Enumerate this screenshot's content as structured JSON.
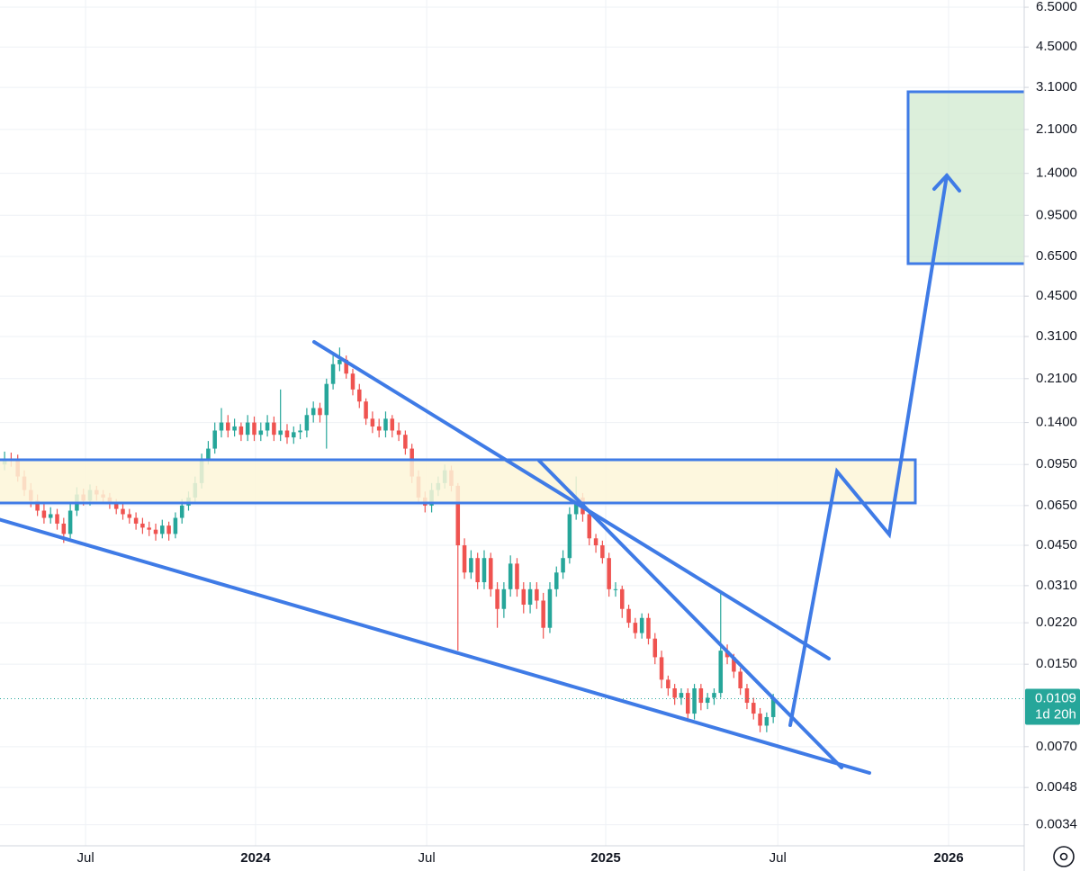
{
  "chart_data": {
    "type": "candlestick",
    "log_scale": true,
    "grid": true,
    "up_color": "#26a69a",
    "down_color": "#ef5350",
    "xlim": [
      -0.7,
      155.2
    ],
    "xticks": [
      {
        "value": 12.33,
        "label": "Jul"
      },
      {
        "value": 38.2,
        "label": "2024"
      },
      {
        "value": 64.25,
        "label": "Jul"
      },
      {
        "value": 91.5,
        "label": "2025"
      },
      {
        "value": 117.7,
        "label": "Jul"
      },
      {
        "value": 143.7,
        "label": "2026"
      }
    ],
    "ylim": [
      0.0028,
      6.95
    ],
    "yticks": [
      {
        "value": 6.5,
        "label": "6.5000"
      },
      {
        "value": 4.5,
        "label": "4.5000"
      },
      {
        "value": 3.1,
        "label": "3.1000"
      },
      {
        "value": 2.1,
        "label": "2.1000"
      },
      {
        "value": 1.4,
        "label": "1.4000"
      },
      {
        "value": 0.95,
        "label": "0.9500"
      },
      {
        "value": 0.65,
        "label": "0.6500"
      },
      {
        "value": 0.45,
        "label": "0.4500"
      },
      {
        "value": 0.31,
        "label": "0.3100"
      },
      {
        "value": 0.21,
        "label": "0.2100"
      },
      {
        "value": 0.14,
        "label": "0.1400"
      },
      {
        "value": 0.095,
        "label": "0.0950"
      },
      {
        "value": 0.065,
        "label": "0.0650"
      },
      {
        "value": 0.045,
        "label": "0.0450"
      },
      {
        "value": 0.031,
        "label": "0.0310"
      },
      {
        "value": 0.022,
        "label": "0.0220"
      },
      {
        "value": 0.015,
        "label": "0.0150"
      },
      {
        "value": 0.007,
        "label": "0.0070"
      },
      {
        "value": 0.0048,
        "label": "0.0048"
      },
      {
        "value": 0.0034,
        "label": "0.0034"
      }
    ],
    "last_price": {
      "value": 0.0109,
      "label": "0.0109"
    },
    "countdown": "1d 20h",
    "open": [
      0.095,
      0.1,
      0.098,
      0.085,
      0.075,
      0.068,
      0.062,
      0.058,
      0.06,
      0.055,
      0.05,
      0.062,
      0.072,
      0.068,
      0.075,
      0.072,
      0.07,
      0.066,
      0.063,
      0.06,
      0.058,
      0.055,
      0.053,
      0.052,
      0.05,
      0.054,
      0.05,
      0.058,
      0.065,
      0.07,
      0.08,
      0.1,
      0.11,
      0.13,
      0.14,
      0.13,
      0.135,
      0.125,
      0.14,
      0.125,
      0.13,
      0.14,
      0.125,
      0.13,
      0.122,
      0.128,
      0.13,
      0.15,
      0.16,
      0.15,
      0.2,
      0.24,
      0.25,
      0.22,
      0.19,
      0.17,
      0.145,
      0.135,
      0.13,
      0.145,
      0.13,
      0.125,
      0.11,
      0.085,
      0.07,
      0.065,
      0.075,
      0.08,
      0.09,
      0.078,
      0.045,
      0.035,
      0.04,
      0.032,
      0.04,
      0.03,
      0.025,
      0.03,
      0.038,
      0.03,
      0.026,
      0.03,
      0.027,
      0.021,
      0.03,
      0.035,
      0.04,
      0.06,
      0.07,
      0.06,
      0.048,
      0.045,
      0.04,
      0.03,
      0.03,
      0.025,
      0.022,
      0.02,
      0.023,
      0.019,
      0.016,
      0.013,
      0.012,
      0.011,
      0.0115,
      0.0095,
      0.012,
      0.0105,
      0.011,
      0.0115,
      0.017,
      0.016,
      0.014,
      0.012,
      0.0105,
      0.0095,
      0.0085,
      0.0092
    ],
    "high": [
      0.107,
      0.106,
      0.104,
      0.09,
      0.08,
      0.072,
      0.066,
      0.064,
      0.063,
      0.058,
      0.066,
      0.077,
      0.076,
      0.079,
      0.078,
      0.075,
      0.073,
      0.069,
      0.066,
      0.063,
      0.061,
      0.058,
      0.056,
      0.055,
      0.057,
      0.056,
      0.061,
      0.069,
      0.074,
      0.085,
      0.105,
      0.118,
      0.14,
      0.16,
      0.15,
      0.145,
      0.14,
      0.15,
      0.148,
      0.14,
      0.15,
      0.148,
      0.19,
      0.138,
      0.135,
      0.138,
      0.16,
      0.17,
      0.168,
      0.21,
      0.26,
      0.28,
      0.26,
      0.23,
      0.2,
      0.175,
      0.155,
      0.145,
      0.155,
      0.15,
      0.14,
      0.13,
      0.115,
      0.09,
      0.074,
      0.08,
      0.085,
      0.095,
      0.094,
      0.08,
      0.048,
      0.043,
      0.042,
      0.043,
      0.042,
      0.032,
      0.032,
      0.041,
      0.04,
      0.032,
      0.032,
      0.032,
      0.029,
      0.032,
      0.037,
      0.043,
      0.064,
      0.085,
      0.073,
      0.062,
      0.05,
      0.047,
      0.042,
      0.032,
      0.031,
      0.026,
      0.023,
      0.024,
      0.024,
      0.02,
      0.017,
      0.0135,
      0.0125,
      0.012,
      0.012,
      0.0125,
      0.0125,
      0.0115,
      0.012,
      0.029,
      0.018,
      0.0165,
      0.0145,
      0.0125,
      0.011,
      0.01,
      0.0096,
      0.0114
    ],
    "low": [
      0.09,
      0.093,
      0.081,
      0.071,
      0.064,
      0.059,
      0.055,
      0.055,
      0.052,
      0.046,
      0.048,
      0.059,
      0.065,
      0.065,
      0.068,
      0.067,
      0.063,
      0.06,
      0.057,
      0.055,
      0.052,
      0.05,
      0.049,
      0.047,
      0.048,
      0.047,
      0.048,
      0.055,
      0.062,
      0.067,
      0.076,
      0.095,
      0.105,
      0.122,
      0.122,
      0.123,
      0.118,
      0.118,
      0.118,
      0.118,
      0.123,
      0.118,
      0.118,
      0.115,
      0.115,
      0.12,
      0.122,
      0.14,
      0.14,
      0.11,
      0.19,
      0.225,
      0.21,
      0.18,
      0.16,
      0.137,
      0.127,
      0.122,
      0.122,
      0.122,
      0.118,
      0.104,
      0.08,
      0.066,
      0.061,
      0.061,
      0.071,
      0.076,
      0.074,
      0.017,
      0.033,
      0.033,
      0.03,
      0.03,
      0.028,
      0.021,
      0.023,
      0.028,
      0.028,
      0.024,
      0.024,
      0.025,
      0.019,
      0.02,
      0.028,
      0.033,
      0.038,
      0.057,
      0.056,
      0.045,
      0.042,
      0.038,
      0.028,
      0.028,
      0.023,
      0.021,
      0.019,
      0.019,
      0.018,
      0.015,
      0.012,
      0.0112,
      0.0103,
      0.0103,
      0.0088,
      0.009,
      0.0098,
      0.0099,
      0.0103,
      0.011,
      0.015,
      0.0132,
      0.0113,
      0.0099,
      0.009,
      0.008,
      0.008,
      0.0087
    ],
    "close": [
      0.1,
      0.098,
      0.085,
      0.075,
      0.068,
      0.062,
      0.058,
      0.06,
      0.055,
      0.05,
      0.062,
      0.072,
      0.068,
      0.075,
      0.072,
      0.07,
      0.066,
      0.063,
      0.06,
      0.058,
      0.055,
      0.053,
      0.052,
      0.05,
      0.054,
      0.05,
      0.058,
      0.065,
      0.07,
      0.08,
      0.1,
      0.11,
      0.13,
      0.14,
      0.13,
      0.135,
      0.125,
      0.14,
      0.125,
      0.13,
      0.14,
      0.125,
      0.13,
      0.122,
      0.128,
      0.13,
      0.15,
      0.16,
      0.15,
      0.2,
      0.24,
      0.25,
      0.22,
      0.19,
      0.17,
      0.145,
      0.135,
      0.13,
      0.145,
      0.13,
      0.125,
      0.11,
      0.085,
      0.07,
      0.065,
      0.075,
      0.08,
      0.09,
      0.078,
      0.045,
      0.035,
      0.04,
      0.032,
      0.04,
      0.03,
      0.025,
      0.03,
      0.038,
      0.03,
      0.026,
      0.03,
      0.027,
      0.021,
      0.03,
      0.035,
      0.04,
      0.06,
      0.07,
      0.06,
      0.048,
      0.045,
      0.04,
      0.03,
      0.03,
      0.025,
      0.022,
      0.02,
      0.023,
      0.019,
      0.016,
      0.013,
      0.012,
      0.011,
      0.0115,
      0.0095,
      0.012,
      0.0105,
      0.011,
      0.0115,
      0.017,
      0.016,
      0.014,
      0.012,
      0.0105,
      0.0095,
      0.0085,
      0.0092,
      0.0109
    ]
  }
}
